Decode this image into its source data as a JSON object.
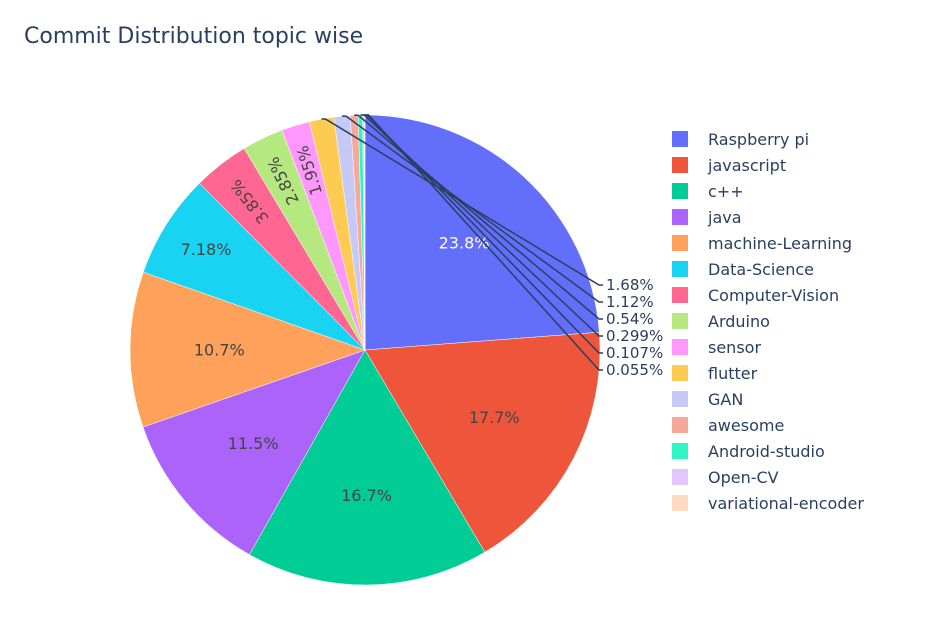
{
  "chart_data": {
    "type": "pie",
    "title": "Commit Distribution topic wise",
    "categories": [
      "Raspberry pi",
      "javascript",
      "c++",
      "java",
      "machine-Learning",
      "Data-Science",
      "Computer-Vision",
      "Arduino",
      "sensor",
      "flutter",
      "GAN",
      "awesome",
      "Android-studio",
      "Open-CV",
      "variational-encoder"
    ],
    "values": [
      23.8,
      17.7,
      16.7,
      11.5,
      10.7,
      7.18,
      3.85,
      2.85,
      1.95,
      1.68,
      1.12,
      0.54,
      0.299,
      0.107,
      0.055
    ],
    "labels": [
      "23.8%",
      "17.7%",
      "16.7%",
      "11.5%",
      "10.7%",
      "7.18%",
      "3.85%",
      "2.85%",
      "1.95%",
      "1.68%",
      "1.12%",
      "0.54%",
      "0.299%",
      "0.107%",
      "0.055%"
    ],
    "colors": [
      "#636efa",
      "#EF553B",
      "#00cc96",
      "#ab63fa",
      "#FFA15A",
      "#19d3f3",
      "#FF6692",
      "#B6E880",
      "#FF97FF",
      "#FECB52",
      "#c6c8f5",
      "#f4a99b",
      "#2ff5c3",
      "#e0c7fd",
      "#fddac0"
    ],
    "legend_order": [
      "Raspberry pi",
      "javascript",
      "c++",
      "java",
      "machine-Learning",
      "Data-Science",
      "Computer-Vision",
      "Arduino",
      "sensor",
      "flutter",
      "GAN",
      "awesome",
      "Android-studio",
      "Open-CV",
      "variational-encoder"
    ],
    "legend_colors": [
      "#636efa",
      "#EF553B",
      "#00cc96",
      "#ab63fa",
      "#FFA15A",
      "#19d3f3",
      "#FF6692",
      "#B6E880",
      "#FF97FF",
      "#FECB52",
      "#c6c8f5",
      "#f4a99b",
      "#2ff5c3",
      "#e0c7fd",
      "#fddac0"
    ],
    "legend_placement": "right"
  }
}
